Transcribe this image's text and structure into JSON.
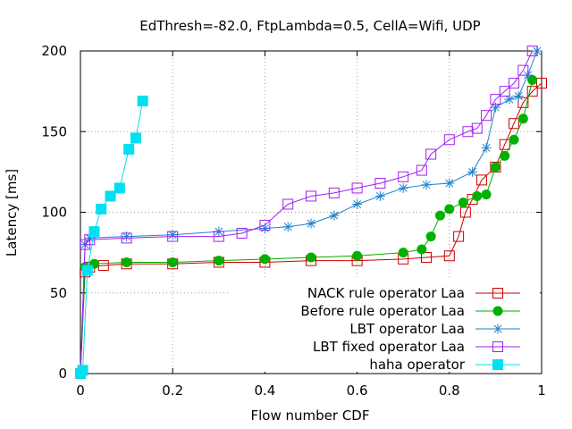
{
  "chart_data": {
    "type": "line",
    "title": "EdThresh=-82.0, FtpLambda=0.5, CellA=Wifi, UDP",
    "xlabel": "Flow number CDF",
    "ylabel": "Latency [ms]",
    "xlim": [
      0,
      1
    ],
    "ylim": [
      0,
      200
    ],
    "xticks": [
      "0",
      "0.2",
      "0.4",
      "0.6",
      "0.8",
      "1"
    ],
    "yticks": [
      "0",
      "50",
      "100",
      "150",
      "200"
    ],
    "grid": true,
    "legend_position": "bottom-right",
    "series": [
      {
        "name": "NACK rule operator Laa",
        "color": "#cc0000",
        "marker": "open-square",
        "x": [
          0.0,
          0.01,
          0.02,
          0.05,
          0.1,
          0.2,
          0.3,
          0.4,
          0.5,
          0.6,
          0.7,
          0.75,
          0.8,
          0.82,
          0.835,
          0.85,
          0.87,
          0.9,
          0.92,
          0.94,
          0.96,
          0.98,
          1.0
        ],
        "y": [
          0,
          63,
          66,
          67,
          68,
          68,
          69,
          69,
          70,
          70,
          71,
          72,
          73,
          85,
          100,
          108,
          120,
          128,
          142,
          155,
          168,
          175,
          180
        ]
      },
      {
        "name": "Before rule operator Laa",
        "color": "#00b000",
        "marker": "filled-circle",
        "x": [
          0.0,
          0.01,
          0.03,
          0.1,
          0.2,
          0.3,
          0.4,
          0.5,
          0.6,
          0.7,
          0.74,
          0.76,
          0.78,
          0.8,
          0.83,
          0.86,
          0.88,
          0.9,
          0.92,
          0.94,
          0.96,
          0.98
        ],
        "y": [
          0,
          66,
          68,
          69,
          69,
          70,
          71,
          72,
          73,
          75,
          77,
          85,
          98,
          102,
          106,
          110,
          111,
          128,
          135,
          145,
          158,
          182
        ]
      },
      {
        "name": "LBT operator Laa",
        "color": "#1e82cc",
        "marker": "star",
        "x": [
          0.0,
          0.01,
          0.02,
          0.1,
          0.2,
          0.3,
          0.4,
          0.45,
          0.5,
          0.55,
          0.6,
          0.65,
          0.7,
          0.75,
          0.8,
          0.85,
          0.88,
          0.9,
          0.93,
          0.95,
          0.97,
          0.99
        ],
        "y": [
          0,
          80,
          84,
          85,
          86,
          88,
          90,
          91,
          93,
          98,
          105,
          110,
          115,
          117,
          118,
          125,
          140,
          165,
          170,
          172,
          185,
          200
        ]
      },
      {
        "name": "LBT fixed operator Laa",
        "color": "#a020f0",
        "marker": "open-square",
        "x": [
          0.0,
          0.01,
          0.02,
          0.1,
          0.2,
          0.3,
          0.35,
          0.4,
          0.45,
          0.5,
          0.55,
          0.6,
          0.65,
          0.7,
          0.74,
          0.76,
          0.8,
          0.84,
          0.86,
          0.88,
          0.9,
          0.92,
          0.94,
          0.96,
          0.98
        ],
        "y": [
          0,
          80,
          83,
          84,
          85,
          85,
          87,
          92,
          105,
          110,
          112,
          115,
          118,
          122,
          126,
          136,
          145,
          150,
          152,
          160,
          170,
          175,
          180,
          188,
          200
        ]
      },
      {
        "name": "haha operator",
        "color": "#00e0f0",
        "marker": "filled-square",
        "x": [
          0.0,
          0.005,
          0.015,
          0.03,
          0.045,
          0.065,
          0.085,
          0.105,
          0.12,
          0.135
        ],
        "y": [
          0,
          2,
          64,
          88,
          102,
          110,
          115,
          139,
          146,
          169
        ]
      }
    ]
  }
}
